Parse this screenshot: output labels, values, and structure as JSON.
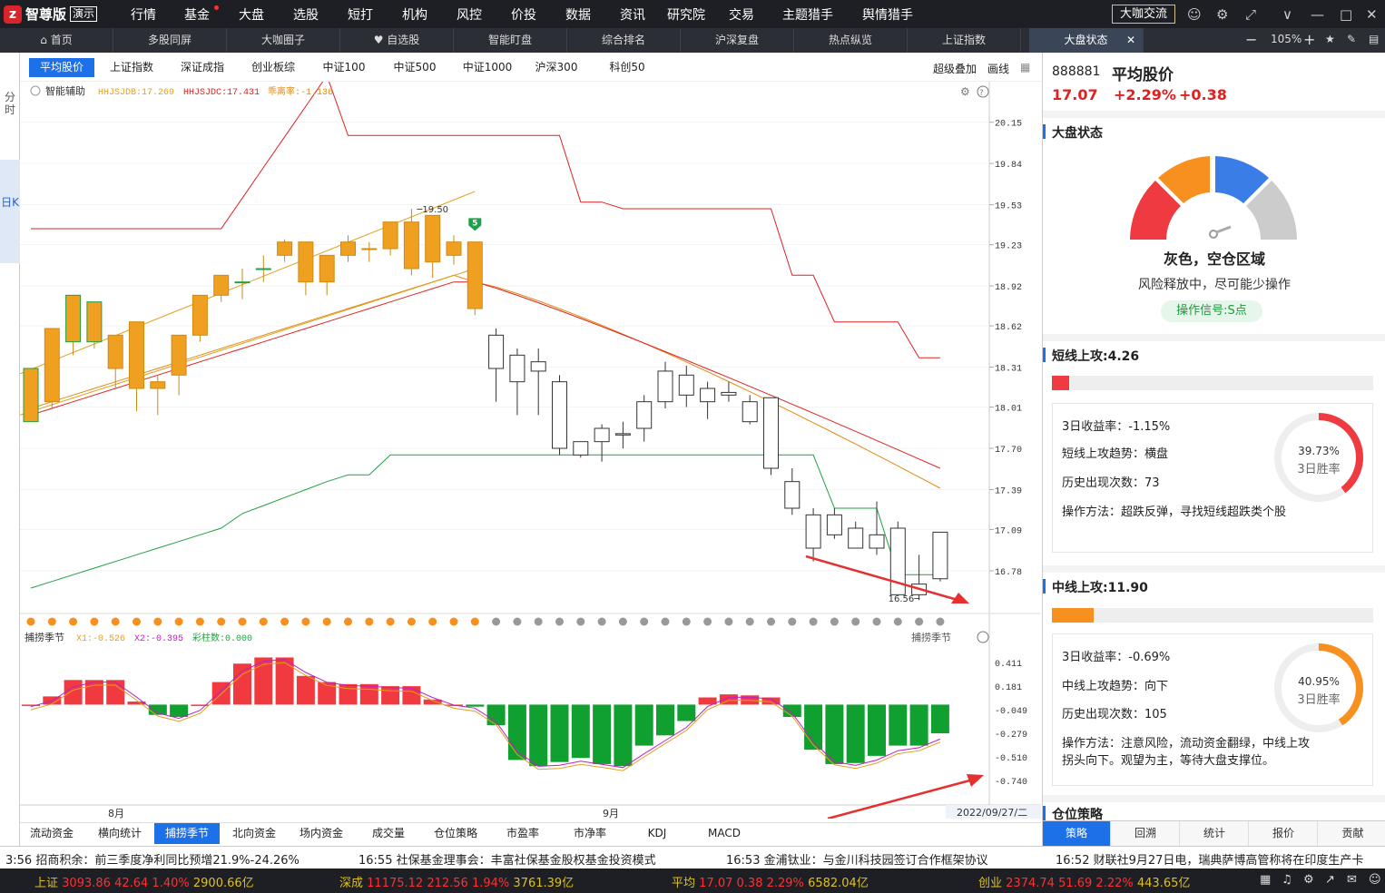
{
  "app": {
    "logo_mark": "z",
    "name": "智尊版",
    "tag": "演示",
    "daka": "大咖交流"
  },
  "menu": [
    "行情",
    "基金",
    "大盘",
    "选股",
    "短打",
    "机构",
    "风控",
    "价投",
    "数据",
    "资讯",
    "研究院",
    "交易",
    "主题猎手",
    "舆情猎手"
  ],
  "top_icons": [
    "user-icon",
    "settings-icon",
    "shrink-icon",
    "chevron-down-icon",
    "minimize-icon",
    "maximize-icon",
    "close-icon"
  ],
  "tabs": [
    "首页",
    "多股同屏",
    "大咖圈子",
    "自选股",
    "智能盯盘",
    "综合排名",
    "沪深复盘",
    "热点纵览",
    "上证指数",
    "大盘状态"
  ],
  "zoom": "105%",
  "left_strip": {
    "fen": "分时",
    "rik": "日K"
  },
  "index_tabs": [
    "平均股价",
    "上证指数",
    "深证成指",
    "创业板综",
    "中证100",
    "中证500",
    "中证1000",
    "沪深300",
    "科创50"
  ],
  "tools": {
    "overlay": "超级叠加",
    "draw": "画线"
  },
  "main": {
    "assist": "智能辅助",
    "l1": "HHJSJDB:17.269",
    "l2": "HHJSJDC:17.431",
    "l3": "乖离率:-1.136",
    "yticks": [
      "20.15",
      "19.84",
      "19.53",
      "19.23",
      "18.92",
      "18.62",
      "18.31",
      "18.01",
      "17.70",
      "17.39",
      "17.09",
      "16.78"
    ],
    "peak": "19.50",
    "low": "16.56",
    "marker": "5"
  },
  "sub": {
    "name": "捕捞季节",
    "x1": "X1:-0.526",
    "x2": "X2:-0.395",
    "cz": "彩柱数:0.000",
    "name_right": "捕捞季节",
    "yticks": [
      "0.411",
      "0.181",
      "-0.049",
      "-0.279",
      "-0.510",
      "-0.740"
    ]
  },
  "xaxis": {
    "m8": "8月",
    "m9": "9月",
    "date": "2022/09/27/二"
  },
  "bottom_tabs": [
    "流动资金",
    "横向统计",
    "捕捞季节",
    "北向资金",
    "场内资金",
    "成交量",
    "仓位策略",
    "市盈率",
    "市净率",
    "KDJ",
    "MACD"
  ],
  "right": {
    "code": "888881",
    "name": "平均股价",
    "price": "17.07",
    "pct": "+2.29%",
    "chg": "+0.38",
    "market_title": "大盘状态",
    "status": "灰色，空仓区域",
    "desc": "风险释放中，尽可能少操作",
    "signal": "操作信号:S点",
    "short": {
      "title": "短线上攻:4.26",
      "level": 0.055,
      "r1": "3日收益率：-1.15%",
      "r2": "短线上攻趋势：横盘",
      "r3": "历史出现次数：73",
      "r4": "操作方法：超跌反弹，寻找短线超跌类个股",
      "pct": "39.73%",
      "win": "3日胜率",
      "win_rate": 0.3973
    },
    "mid": {
      "title": "中线上攻:11.90",
      "level": 0.13,
      "r1": "3日收益率：-0.69%",
      "r2": "中线上攻趋势：向下",
      "r3": "历史出现次数：105",
      "r4a": "操作方法：注意风险，流动资金翻绿，中线上攻",
      "r4b": "拐头向下。观望为主，等待大盘支撑位。",
      "pct": "40.95%",
      "win": "3日胜率",
      "win_rate": 0.4095
    },
    "pos_title": "仓位策略",
    "tabs": [
      "策略",
      "回溯",
      "统计",
      "报价",
      "贡献"
    ]
  },
  "news": [
    "3:56 招商积余：前三季度净利同比预增21.9%-24.26%",
    "16:55 社保基金理事会：丰富社保基金股权基金投资模式",
    "16:53 金浦钛业：与金川科技园签订合作框架协议",
    "16:52 财联社9月27日电，瑞典萨博高管称将在印度生产卡"
  ],
  "status": [
    {
      "n": "上证",
      "v": "3093.86",
      "c": "42.64",
      "p": "1.40%",
      "a": "2900.66亿"
    },
    {
      "n": "深成",
      "v": "11175.12",
      "c": "212.56",
      "p": "1.94%",
      "a": "3761.39亿"
    },
    {
      "n": "平均",
      "v": "17.07",
      "c": "0.38",
      "p": "2.29%",
      "a": "6582.04亿"
    },
    {
      "n": "创业",
      "v": "2374.74",
      "c": "51.69",
      "p": "2.22%",
      "a": "443.65亿"
    }
  ],
  "colors": {
    "up": "#ff3030",
    "down": "#00a020",
    "accent": "#1e70e8",
    "candle_up": "#f0a020",
    "ma_red": "#e02020",
    "ma_orange": "#e08a10",
    "band_green": "#20a040"
  },
  "chart_data": [
    {
      "type": "candlestick",
      "title": "平均股价",
      "y_range": [
        16.5,
        20.25
      ],
      "candles": [
        [
          17.9,
          18.3,
          18.15,
          17.95
        ],
        [
          18.05,
          18.6,
          18.57,
          18.0
        ],
        [
          18.5,
          18.85,
          18.78,
          18.4
        ],
        [
          18.5,
          18.8,
          18.76,
          18.45
        ],
        [
          18.3,
          18.55,
          18.52,
          18.15
        ],
        [
          18.15,
          18.65,
          18.2,
          17.98
        ],
        [
          18.15,
          18.2,
          18.25,
          17.95
        ],
        [
          18.25,
          18.55,
          18.35,
          18.1
        ],
        [
          18.55,
          18.85,
          18.82,
          18.5
        ],
        [
          18.85,
          19.0,
          19.0,
          18.8
        ],
        [
          18.95,
          18.95,
          19.05,
          18.82
        ],
        [
          19.05,
          19.05,
          19.15,
          18.95
        ],
        [
          19.15,
          19.25,
          19.27,
          19.1
        ],
        [
          18.95,
          19.25,
          19.25,
          18.85
        ],
        [
          18.95,
          19.15,
          19.15,
          18.85
        ],
        [
          19.15,
          19.25,
          19.3,
          19.1
        ],
        [
          19.2,
          19.2,
          19.25,
          19.1
        ],
        [
          19.2,
          19.4,
          19.4,
          19.15
        ],
        [
          19.05,
          19.4,
          19.5,
          19.0
        ],
        [
          19.1,
          19.45,
          19.45,
          18.98
        ],
        [
          19.15,
          19.25,
          19.3,
          19.08
        ],
        [
          18.75,
          19.25,
          19.25,
          18.7
        ],
        [
          18.3,
          18.55,
          18.6,
          18.05
        ],
        [
          18.2,
          18.4,
          18.45,
          17.95
        ],
        [
          18.35,
          18.28,
          18.45,
          17.95
        ],
        [
          17.7,
          18.2,
          18.25,
          17.65
        ],
        [
          17.65,
          17.75,
          17.75,
          17.63
        ],
        [
          17.75,
          17.85,
          17.88,
          17.6
        ],
        [
          17.8,
          17.81,
          17.9,
          17.7
        ],
        [
          17.85,
          18.05,
          18.1,
          17.75
        ],
        [
          18.05,
          18.28,
          18.35,
          18.0
        ],
        [
          18.25,
          18.1,
          18.32,
          18.01
        ],
        [
          18.05,
          18.15,
          18.2,
          17.92
        ],
        [
          18.1,
          18.12,
          18.2,
          18.05
        ],
        [
          17.9,
          18.05,
          18.1,
          17.88
        ],
        [
          17.55,
          18.08,
          18.08,
          17.5
        ],
        [
          17.25,
          17.45,
          17.55,
          17.2
        ],
        [
          16.95,
          17.2,
          17.25,
          16.85
        ],
        [
          17.05,
          17.2,
          17.25,
          17.02
        ],
        [
          16.95,
          17.1,
          17.15,
          16.95
        ],
        [
          16.95,
          17.05,
          17.3,
          16.9
        ],
        [
          16.6,
          17.1,
          17.15,
          16.6
        ],
        [
          16.6,
          16.68,
          16.9,
          16.56
        ],
        [
          16.72,
          17.07,
          17.07,
          16.7
        ]
      ],
      "sub_chart": {
        "name": "捕捞季节",
        "y_range": [
          -0.74,
          0.411
        ],
        "bars": [
          0.0,
          0.08,
          0.24,
          0.24,
          0.24,
          0.03,
          -0.1,
          -0.12,
          0.0,
          0.22,
          0.4,
          0.46,
          0.46,
          0.28,
          0.22,
          0.2,
          0.2,
          0.18,
          0.18,
          0.05,
          0.0,
          -0.02,
          -0.2,
          -0.54,
          -0.6,
          -0.56,
          -0.52,
          -0.58,
          -0.6,
          -0.4,
          -0.3,
          -0.16,
          0.07,
          0.1,
          0.09,
          0.07,
          -0.12,
          -0.44,
          -0.58,
          -0.57,
          -0.5,
          -0.4,
          -0.4,
          -0.28
        ]
      }
    }
  ]
}
